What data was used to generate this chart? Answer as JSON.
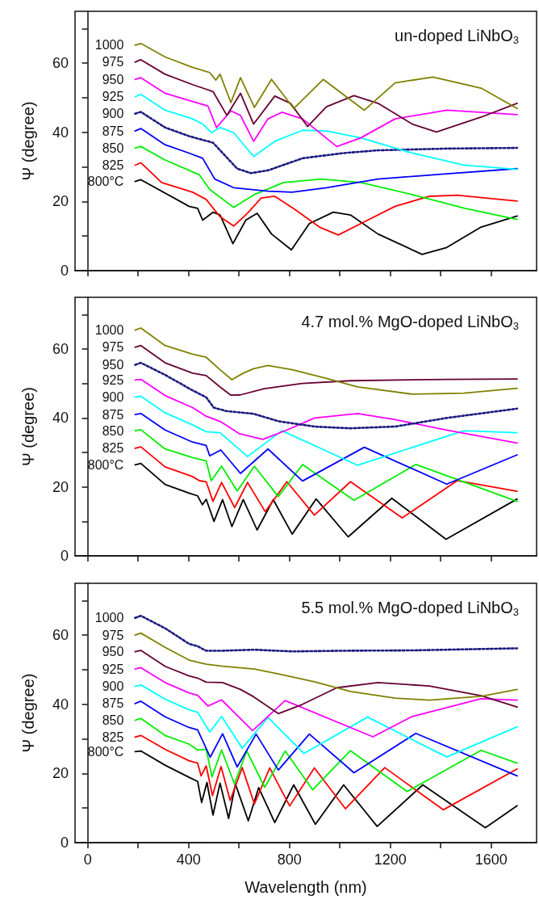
{
  "chart_data": [
    {
      "type": "line",
      "title": "un-doped LiNbO$_{3}$",
      "ylabel": "Ψ (degree)",
      "xlim": [
        -50,
        1780
      ],
      "ylim": [
        0,
        75
      ],
      "marker": "none",
      "tick_labels": "y",
      "xticks": [
        0,
        {
          "value": 200,
          "label": null
        },
        400,
        {
          "value": 600,
          "label": null
        },
        800,
        {
          "value": 1000,
          "label": null
        },
        1200,
        {
          "value": 1400,
          "label": null
        },
        1600
      ],
      "yticks": [
        0,
        {
          "value": 10,
          "label": null
        },
        20,
        {
          "value": 30,
          "label": null
        },
        40,
        {
          "value": 50,
          "label": null
        },
        60,
        {
          "value": 70,
          "label": null
        }
      ],
      "series": [
        {
          "name": "800°C",
          "color": "#000000",
          "x": [
            188,
            211,
            402,
            436,
            456,
            497,
            525,
            576,
            627,
            672,
            729,
            808,
            879,
            974,
            1042,
            1151,
            1326,
            1424,
            1560,
            1703
          ],
          "values": [
            25.8,
            26.3,
            18.6,
            18,
            14.6,
            16.9,
            16.1,
            7.8,
            14.6,
            16.6,
            10.6,
            6,
            13.6,
            16.9,
            16.1,
            10.6,
            4.7,
            6.7,
            12.6,
            15.8
          ]
        },
        {
          "name": "825",
          "color": "#ff0000",
          "x": [
            188,
            211,
            293,
            416,
            470,
            525,
            579,
            634,
            688,
            742,
            824,
            919,
            994,
            1083,
            1219,
            1355,
            1464,
            1703
          ],
          "values": [
            30.5,
            31.2,
            25.5,
            22.7,
            20.6,
            15.6,
            12.9,
            16.6,
            21,
            21.5,
            17.6,
            12.6,
            10.3,
            13.6,
            18.6,
            21.5,
            21.8,
            20.1
          ]
        },
        {
          "name": "850",
          "color": "#00ee00",
          "x": [
            188,
            211,
            307,
            443,
            484,
            579,
            661,
            777,
            926,
            1083,
            1287,
            1492,
            1703
          ],
          "values": [
            35.5,
            35.9,
            32,
            27.7,
            23.5,
            18.3,
            22,
            25.5,
            26.5,
            25.5,
            22,
            18.1,
            14.8
          ]
        },
        {
          "name": "875",
          "color": "#0000ff",
          "x": [
            188,
            211,
            307,
            402,
            456,
            504,
            579,
            715,
            811,
            947,
            1151,
            1424,
            1703
          ],
          "values": [
            40.4,
            41.1,
            36.4,
            34,
            32.5,
            26.5,
            24,
            23,
            22.7,
            24,
            26.5,
            28,
            29.5
          ]
        },
        {
          "name": "900",
          "color": "#1a1a80",
          "line_style": "dotted",
          "x": [
            188,
            211,
            307,
            402,
            497,
            593,
            647,
            715,
            852,
            1015,
            1151,
            1424,
            1703
          ],
          "values": [
            45.4,
            45.9,
            41.4,
            38.9,
            37,
            29.5,
            28.2,
            29,
            32.5,
            34,
            34.8,
            35.3,
            35.5
          ]
        },
        {
          "name": "925",
          "color": "#00ffff",
          "x": [
            188,
            211,
            307,
            416,
            456,
            491,
            525,
            579,
            658,
            742,
            852,
            947,
            1083,
            1287,
            1492,
            1703
          ],
          "values": [
            50.3,
            51,
            46.4,
            43.9,
            42.4,
            39.9,
            41.4,
            39.9,
            33,
            37.4,
            40.6,
            40.4,
            38.4,
            34,
            30.5,
            29.3
          ]
        },
        {
          "name": "950",
          "color": "#ff00ff",
          "x": [
            188,
            211,
            307,
            416,
            477,
            511,
            568,
            606,
            658,
            715,
            770,
            852,
            988,
            1083,
            1219,
            1424,
            1703
          ],
          "values": [
            55.3,
            55.8,
            51.3,
            48.9,
            47.6,
            41.4,
            46.2,
            44.9,
            37.4,
            43.9,
            45.8,
            43.9,
            35.9,
            38.4,
            43.9,
            46.4,
            45.1
          ]
        },
        {
          "name": "975",
          "color": "#660033",
          "x": [
            188,
            211,
            307,
            416,
            497,
            552,
            606,
            658,
            742,
            804,
            872,
            947,
            1056,
            1151,
            1287,
            1383,
            1560,
            1703
          ],
          "values": [
            60.3,
            61,
            56.8,
            53.8,
            51.8,
            44.9,
            51.3,
            42.4,
            50.5,
            48.4,
            41.7,
            47.4,
            50.6,
            48.4,
            42.4,
            40.1,
            44.4,
            48.4
          ]
        },
        {
          "name": "1000",
          "color": "#808000",
          "x": [
            188,
            211,
            307,
            416,
            484,
            508,
            525,
            568,
            606,
            661,
            729,
            817,
            934,
            1097,
            1219,
            1369,
            1560,
            1703
          ],
          "values": [
            65.2,
            65.7,
            61.8,
            58.8,
            57.3,
            55.1,
            56.8,
            48.6,
            55.8,
            47.2,
            55.3,
            46.9,
            55.3,
            46.4,
            54.3,
            56,
            52.8,
            46.9
          ]
        }
      ]
    },
    {
      "type": "line",
      "title": "4.7 mol.% MgO-doped LiNbO$_{3}$",
      "ylabel": "Ψ (degree)",
      "xlim": [
        -50,
        1780
      ],
      "ylim": [
        0,
        75
      ],
      "marker": "none",
      "tick_labels": "y",
      "xticks": [
        0,
        {
          "value": 200,
          "label": null
        },
        400,
        {
          "value": 600,
          "label": null
        },
        800,
        {
          "value": 1000,
          "label": null
        },
        1200,
        {
          "value": 1400,
          "label": null
        },
        1600
      ],
      "yticks": [
        0,
        {
          "value": 10,
          "label": null
        },
        20,
        {
          "value": 30,
          "label": null
        },
        40,
        {
          "value": 50,
          "label": null
        },
        60,
        {
          "value": 70,
          "label": null
        }
      ],
      "series": [
        {
          "name": "800°C",
          "color": "#000000",
          "x": [
            188,
            211,
            307,
            402,
            436,
            455,
            470,
            501,
            535,
            572,
            617,
            672,
            736,
            811,
            906,
            1033,
            1206,
            1421,
            1703
          ],
          "values": [
            26.4,
            26.8,
            20.7,
            18.2,
            17.4,
            14.8,
            16.4,
            10,
            16.3,
            8.5,
            16.3,
            7.5,
            16.3,
            6.3,
            16.5,
            5.5,
            16.7,
            4.8,
            16.5
          ]
        },
        {
          "name": "825",
          "color": "#ff0000",
          "x": [
            188,
            211,
            307,
            416,
            443,
            470,
            497,
            531,
            583,
            634,
            704,
            790,
            899,
            1042,
            1247,
            1465,
            1703
          ],
          "values": [
            31.2,
            31.6,
            25.8,
            23,
            21.8,
            21.5,
            15.8,
            21.3,
            14,
            21.3,
            12.8,
            21.5,
            11.8,
            21.5,
            11,
            21.8,
            18.7
          ]
        },
        {
          "name": "850",
          "color": "#00ee00",
          "x": [
            188,
            211,
            307,
            416,
            470,
            490,
            531,
            593,
            661,
            756,
            852,
            1056,
            1301,
            1703
          ],
          "values": [
            36.3,
            36.6,
            31,
            28.5,
            27.5,
            21.8,
            26,
            18.8,
            26,
            17.2,
            26.5,
            16.1,
            26.5,
            15.8
          ]
        },
        {
          "name": "875",
          "color": "#0000ff",
          "x": [
            188,
            211,
            307,
            416,
            470,
            484,
            528,
            606,
            715,
            852,
            1097,
            1424,
            1703
          ],
          "values": [
            41,
            41.3,
            36.5,
            33,
            32,
            29,
            30.7,
            23.9,
            31,
            21.7,
            31.5,
            20.8,
            29.3
          ]
        },
        {
          "name": "900",
          "color": "#00ffff",
          "x": [
            188,
            211,
            307,
            416,
            470,
            525,
            634,
            770,
            1070,
            1492,
            1703
          ],
          "values": [
            46,
            46.3,
            41.5,
            38,
            36,
            35.7,
            28.8,
            36.3,
            26.3,
            36.3,
            35.7
          ]
        },
        {
          "name": "925",
          "color": "#ff00ff",
          "x": [
            188,
            211,
            307,
            416,
            470,
            525,
            600,
            695,
            790,
            900,
            1070,
            1219,
            1424,
            1703
          ],
          "values": [
            51,
            51.2,
            46.5,
            43,
            40.5,
            39,
            35.5,
            33.8,
            36.5,
            40,
            41.3,
            39.5,
            36.5,
            32.7
          ]
        },
        {
          "name": "950",
          "color": "#1a1a80",
          "line_style": "dotted",
          "x": [
            188,
            211,
            307,
            416,
            470,
            500,
            550,
            658,
            760,
            900,
            1042,
            1219,
            1424,
            1703
          ],
          "values": [
            55.4,
            56,
            52.5,
            48,
            46,
            43,
            42,
            41.2,
            39,
            37.5,
            37,
            37.5,
            40,
            42.7
          ]
        },
        {
          "name": "975",
          "color": "#660033",
          "x": [
            188,
            211,
            307,
            416,
            470,
            525,
            568,
            606,
            700,
            850,
            1042,
            1424,
            1703
          ],
          "values": [
            60.5,
            61,
            56,
            53,
            52.3,
            49,
            46.6,
            46.7,
            48.5,
            50,
            50.8,
            51.2,
            51.3
          ]
        },
        {
          "name": "1000",
          "color": "#808000",
          "x": [
            188,
            211,
            307,
            416,
            470,
            525,
            572,
            617,
            658,
            715,
            811,
            947,
            1070,
            1287,
            1492,
            1703
          ],
          "values": [
            65.5,
            66.1,
            61,
            58.5,
            57.6,
            54,
            51.1,
            53,
            54.3,
            55.2,
            54,
            51.5,
            49,
            46.9,
            47.2,
            48.6
          ]
        }
      ]
    },
    {
      "type": "line",
      "title": "5.5 mol.% MgO-doped LiNbO$_{3}$",
      "xlabel": "Wavelength (nm)",
      "ylabel": "Ψ (degree)",
      "xlim": [
        -50,
        1780
      ],
      "ylim": [
        0,
        75
      ],
      "marker": "none",
      "xticks": [
        0,
        {
          "value": 200,
          "label": null
        },
        400,
        {
          "value": 600,
          "label": null
        },
        800,
        {
          "value": 1000,
          "label": null
        },
        1200,
        {
          "value": 1400,
          "label": null
        },
        1600
      ],
      "yticks": [
        0,
        {
          "value": 10,
          "label": null
        },
        20,
        {
          "value": 30,
          "label": null
        },
        40,
        {
          "value": 50,
          "label": null
        },
        60,
        {
          "value": 70,
          "label": null
        }
      ],
      "series": [
        {
          "name": "800°C",
          "color": "#000000",
          "x": [
            188,
            211,
            307,
            402,
            436,
            452,
            473,
            497,
            525,
            559,
            586,
            637,
            678,
            742,
            817,
            903,
            1015,
            1148,
            1329,
            1577,
            1703
          ],
          "values": [
            26.3,
            26.5,
            22.4,
            18.9,
            17.7,
            11.6,
            17.4,
            8,
            17.2,
            7,
            16.9,
            6.3,
            15.9,
            5.8,
            16.7,
            5.3,
            16.7,
            4.7,
            16.7,
            4.3,
            10.7
          ]
        },
        {
          "name": "825",
          "color": "#ff0000",
          "x": [
            188,
            211,
            307,
            402,
            436,
            450,
            470,
            495,
            529,
            565,
            613,
            661,
            722,
            801,
            899,
            1022,
            1178,
            1410,
            1703
          ],
          "values": [
            30.5,
            31,
            27,
            23.7,
            23,
            19.3,
            22.2,
            13.6,
            22,
            12.2,
            21.7,
            11.2,
            21.6,
            10.6,
            21.6,
            9.8,
            21.7,
            9.5,
            21.3
          ]
        },
        {
          "name": "850",
          "color": "#00ee00",
          "x": [
            188,
            211,
            307,
            402,
            436,
            470,
            493,
            531,
            582,
            631,
            702,
            783,
            892,
            1042,
            1267,
            1560,
            1703
          ],
          "values": [
            35.4,
            35.9,
            31,
            28.5,
            26.8,
            27,
            19,
            26.8,
            17,
            26.5,
            16,
            26.5,
            15.3,
            26.6,
            14.8,
            26.7,
            23
          ]
        },
        {
          "name": "875",
          "color": "#0000ff",
          "x": [
            188,
            211,
            307,
            402,
            436,
            486,
            535,
            593,
            668,
            756,
            879,
            1056,
            1301,
            1703
          ],
          "values": [
            40.2,
            40.9,
            36.4,
            33.3,
            32.6,
            24.7,
            31.5,
            21.9,
            31.4,
            21,
            31.4,
            20.2,
            31.6,
            19.3
          ]
        },
        {
          "name": "900",
          "color": "#00ffff",
          "x": [
            188,
            211,
            307,
            402,
            436,
            484,
            531,
            613,
            715,
            858,
            1110,
            1424,
            1703
          ],
          "values": [
            45.2,
            45.6,
            41.5,
            38.4,
            37.7,
            32,
            36.5,
            27.3,
            36.2,
            25.8,
            36.3,
            24.8,
            33.5
          ]
        },
        {
          "name": "925",
          "color": "#ff00ff",
          "x": [
            188,
            211,
            307,
            402,
            436,
            477,
            531,
            654,
            783,
            1131,
            1287,
            1560,
            1703
          ],
          "values": [
            50.2,
            50.6,
            46.3,
            43.3,
            42.6,
            39.5,
            41.3,
            32.4,
            41.1,
            30.6,
            36.5,
            41.6,
            41.2
          ]
        },
        {
          "name": "950",
          "color": "#660033",
          "x": [
            188,
            211,
            307,
            402,
            436,
            470,
            535,
            606,
            658,
            756,
            852,
            988,
            1151,
            1355,
            1560,
            1703
          ],
          "values": [
            55.2,
            55.6,
            51,
            48.2,
            47.6,
            46.4,
            46.3,
            44.3,
            42.2,
            37.3,
            40,
            44.8,
            46.3,
            45.3,
            42.5,
            39.2
          ]
        },
        {
          "name": "975",
          "color": "#808000",
          "x": [
            188,
            211,
            307,
            402,
            470,
            535,
            661,
            756,
            899,
            1042,
            1219,
            1355,
            1560,
            1703
          ],
          "values": [
            60,
            60.6,
            56.5,
            52.8,
            51.6,
            51,
            50.2,
            48.8,
            46.5,
            43.7,
            41.8,
            41.2,
            42.3,
            44.3
          ]
        },
        {
          "name": "1000",
          "color": "#1a1a80",
          "line_style": "dotted",
          "x": [
            188,
            211,
            307,
            402,
            436,
            470,
            535,
            658,
            811,
            1015,
            1287,
            1492,
            1703
          ],
          "values": [
            65,
            65.6,
            62,
            57.5,
            56.8,
            55.5,
            55.5,
            55.8,
            55.3,
            55.5,
            55.6,
            55.9,
            56.2
          ]
        }
      ]
    }
  ]
}
